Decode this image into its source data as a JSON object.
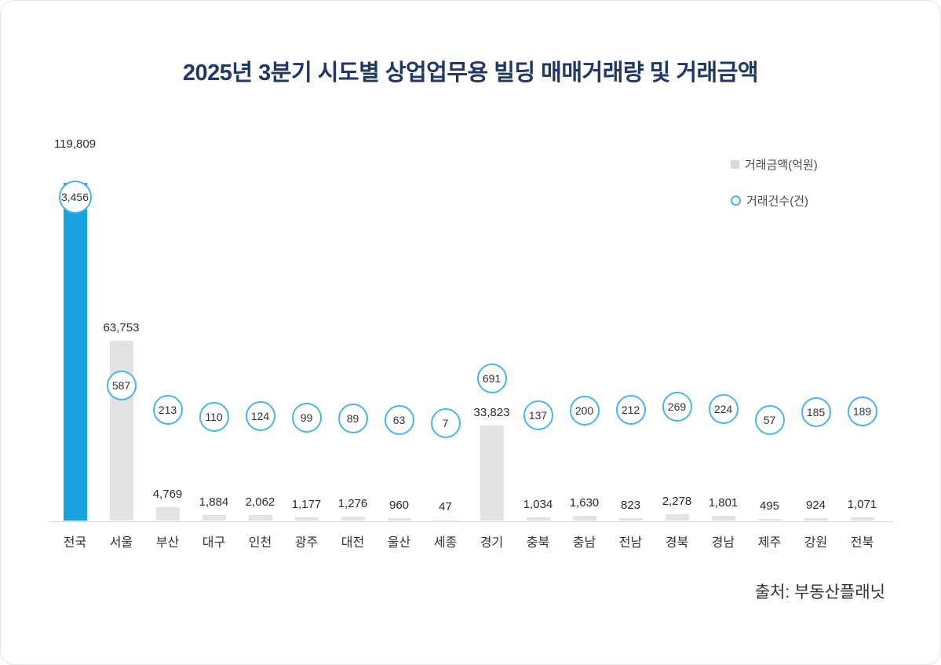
{
  "title": "2025년 3분기 시도별 상업업무용 빌딩 매매거래량 및 거래금액",
  "legend": {
    "amount": {
      "label": "거래금액(억원)"
    },
    "count": {
      "label": "거래건수(건)"
    }
  },
  "source": "출처: 부동산플래닛",
  "colors": {
    "title": "#203864",
    "highlight_bar": "#18a0e0",
    "default_bar": "#e3e3e3",
    "circle_outline": "#4ab5e6",
    "legend_square": "#d9d9d9"
  },
  "chart_data": {
    "type": "bar",
    "title": "2025년 3분기 시도별 상업업무용 빌딩 매매거래량 및 거래금액",
    "categories": [
      "전국",
      "서울",
      "부산",
      "대구",
      "인천",
      "광주",
      "대전",
      "울산",
      "세종",
      "경기",
      "충북",
      "충남",
      "전남",
      "경북",
      "경남",
      "제주",
      "강원",
      "전북"
    ],
    "series": [
      {
        "name": "거래금액(억원)",
        "type": "bar",
        "highlight_category": "전국",
        "values": [
          119809,
          63753,
          4769,
          1884,
          2062,
          1177,
          1276,
          960,
          47,
          33823,
          1034,
          1630,
          823,
          2278,
          1801,
          495,
          924,
          1071
        ]
      },
      {
        "name": "거래건수(건)",
        "type": "scatter",
        "values": [
          3456,
          587,
          213,
          110,
          124,
          99,
          89,
          63,
          7,
          691,
          137,
          200,
          212,
          269,
          224,
          57,
          185,
          189
        ]
      }
    ],
    "ylim": [
      0,
      125000
    ],
    "y2lim": [
      0,
      3600
    ],
    "grid": false,
    "value_labels": true,
    "legend_position": "top-right"
  }
}
